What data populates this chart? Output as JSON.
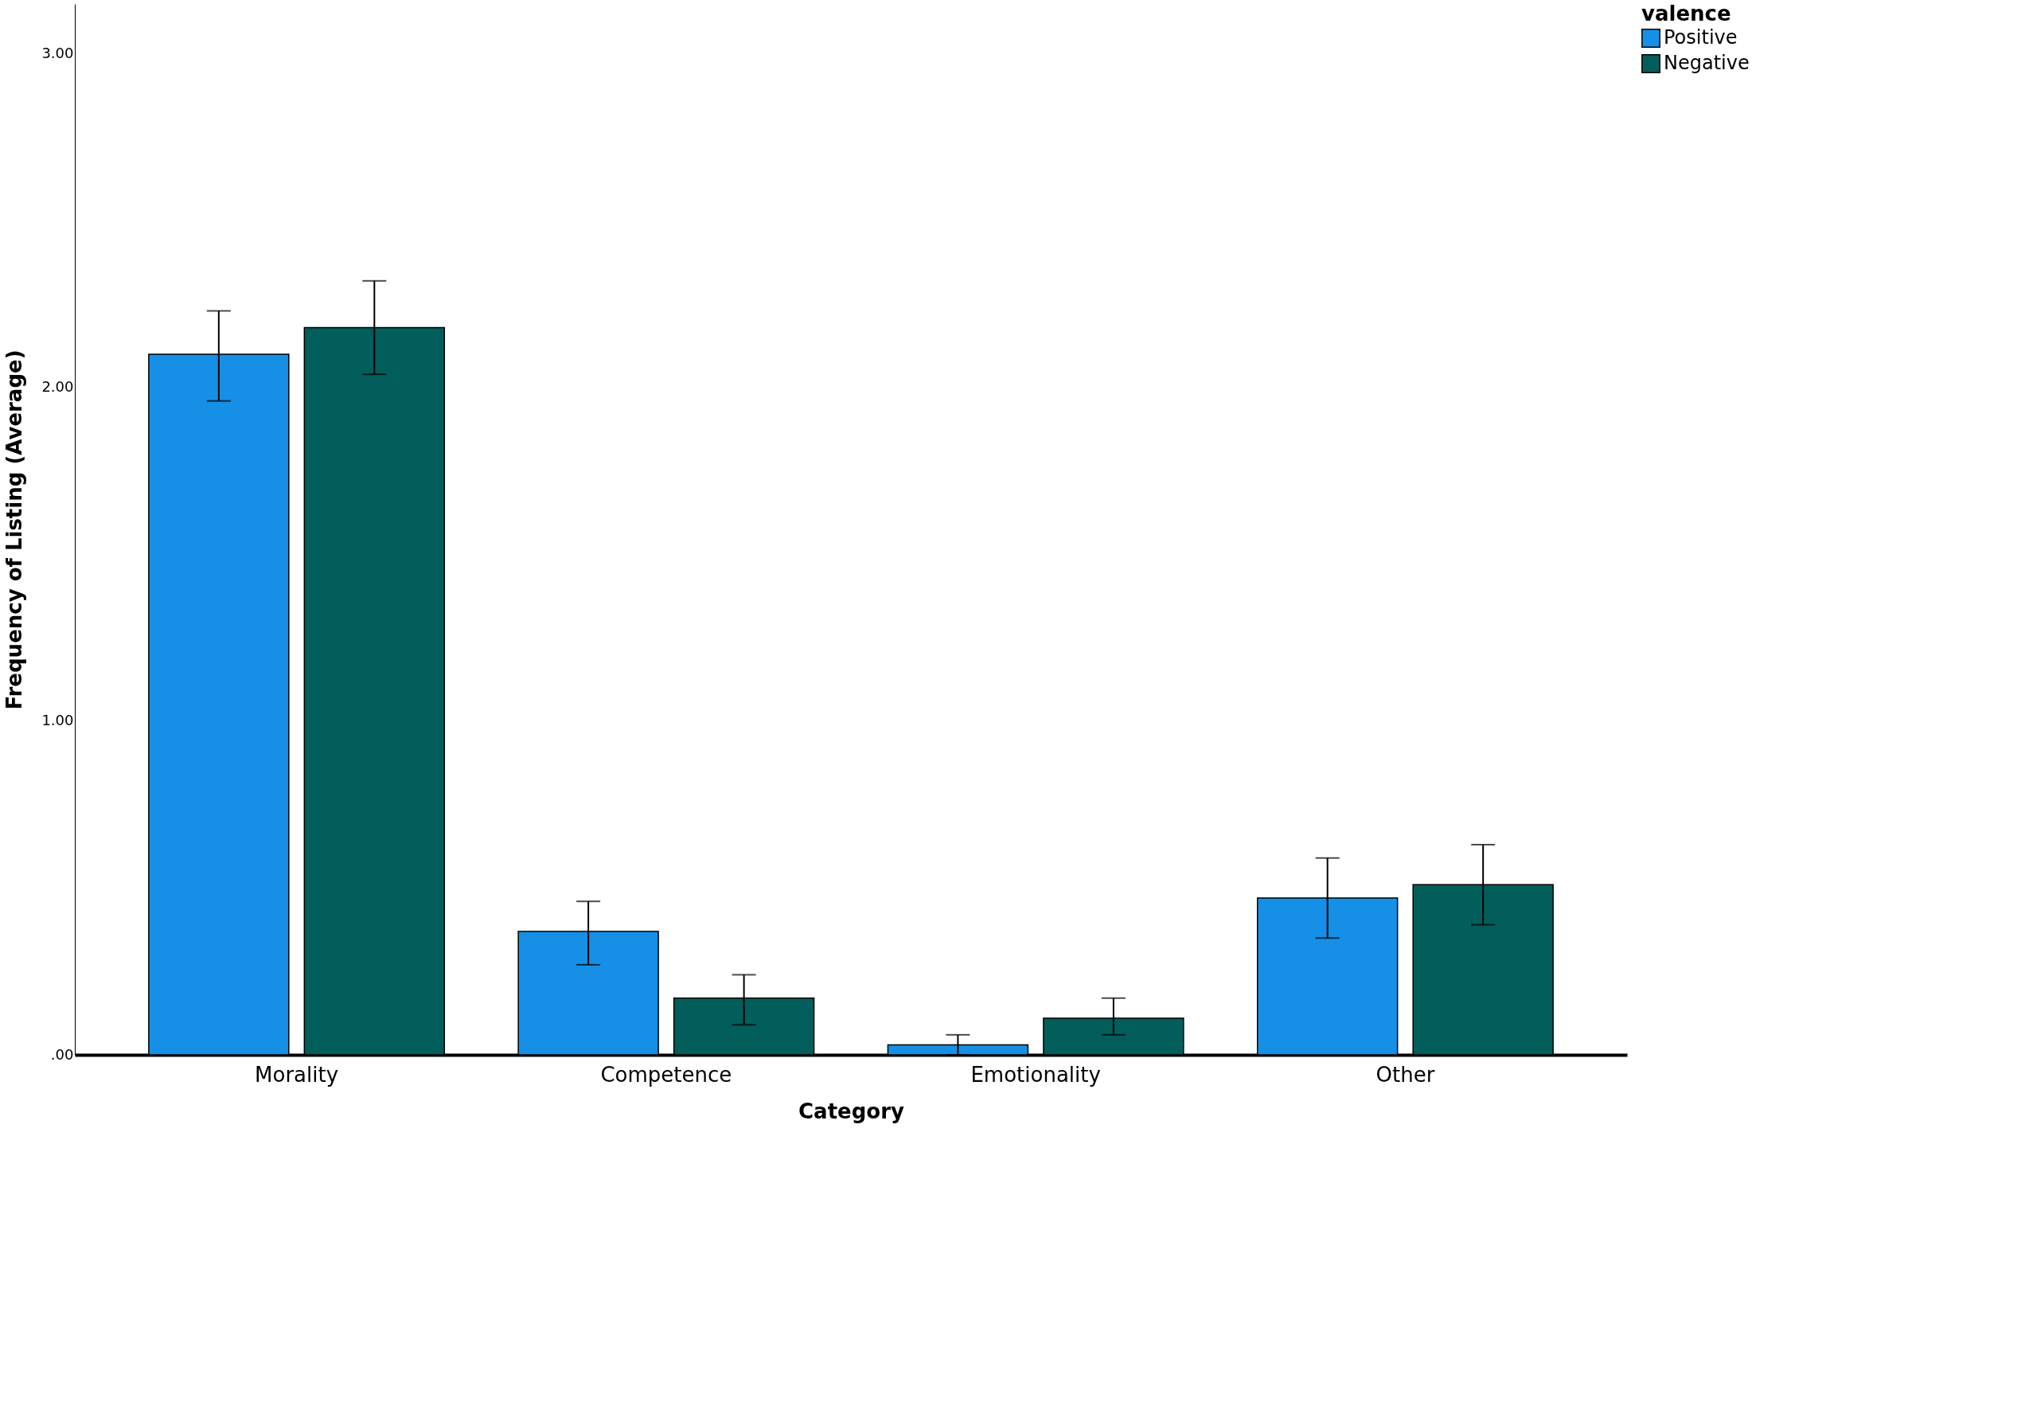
{
  "chart_data": {
    "type": "bar",
    "xlabel": "Category",
    "ylabel": "Frequency of Listing (Average)",
    "legend_title": "valence",
    "legend": "top right",
    "grid": false,
    "categories": [
      "Morality",
      "Competence",
      "Emotionality",
      "Other"
    ],
    "ylim": [
      0,
      3.15
    ],
    "yticks": [
      {
        "value": 0,
        "label": ".00"
      },
      {
        "value": 1,
        "label": "1.00"
      },
      {
        "value": 2,
        "label": "2.00"
      },
      {
        "value": 3,
        "label": "3.00"
      }
    ],
    "series": [
      {
        "name": "Positive",
        "color": "#1590e6",
        "values": [
          2.1,
          0.37,
          0.03,
          0.47
        ],
        "errors": [
          [
            1.96,
            2.23
          ],
          [
            0.27,
            0.46
          ],
          [
            0.0,
            0.06
          ],
          [
            0.35,
            0.59
          ]
        ]
      },
      {
        "name": "Negative",
        "color": "#025e5a",
        "values": [
          2.18,
          0.17,
          0.11,
          0.51
        ],
        "errors": [
          [
            2.04,
            2.32
          ],
          [
            0.09,
            0.24
          ],
          [
            0.06,
            0.17
          ],
          [
            0.39,
            0.63
          ]
        ]
      }
    ]
  }
}
